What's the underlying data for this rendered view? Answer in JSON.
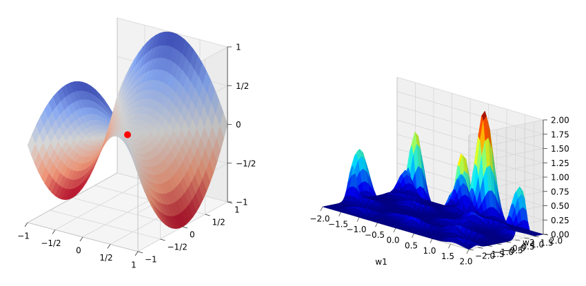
{
  "chart_data": [
    {
      "type": "surface3d",
      "function": "saddle z = x^2 - y^2",
      "colormap": "coolwarm",
      "x_ticks": [
        "−1",
        "−1/2",
        "0",
        "1/2",
        "1"
      ],
      "y_ticks": [
        "−1",
        "−1/2",
        "0",
        "1/2",
        "1"
      ],
      "z_ticks": [
        "−1",
        "−1/2",
        "0",
        "1/2",
        "1"
      ],
      "xlim": [
        -1,
        1
      ],
      "ylim": [
        -1,
        1
      ],
      "zlim": [
        -1,
        1
      ],
      "highlight_point": {
        "x": 0,
        "y": 0,
        "z": 0,
        "color": "#ff0000"
      },
      "grid": true
    },
    {
      "type": "surface3d",
      "function": "multi-peak loss landscape",
      "colormap": "jet",
      "xlabel": "w1",
      "ylabel": "w2",
      "x_ticks": [
        "−2.0",
        "−1.5",
        "−1.0",
        "−0.5",
        "0.0",
        "0.5",
        "1.0",
        "1.5",
        "2.0"
      ],
      "y_ticks": [
        "−2.0",
        "−1.5",
        "−1.0",
        "−0.5",
        "0.0",
        "0.5",
        "1.0",
        "1.5",
        "2.0"
      ],
      "z_ticks": [
        "0.00",
        "0.25",
        "0.50",
        "0.75",
        "1.00",
        "1.25",
        "1.50",
        "1.75",
        "2.00"
      ],
      "xlim": [
        -2,
        2
      ],
      "ylim": [
        -2,
        2
      ],
      "zlim": [
        0,
        2
      ],
      "grid": true
    }
  ]
}
